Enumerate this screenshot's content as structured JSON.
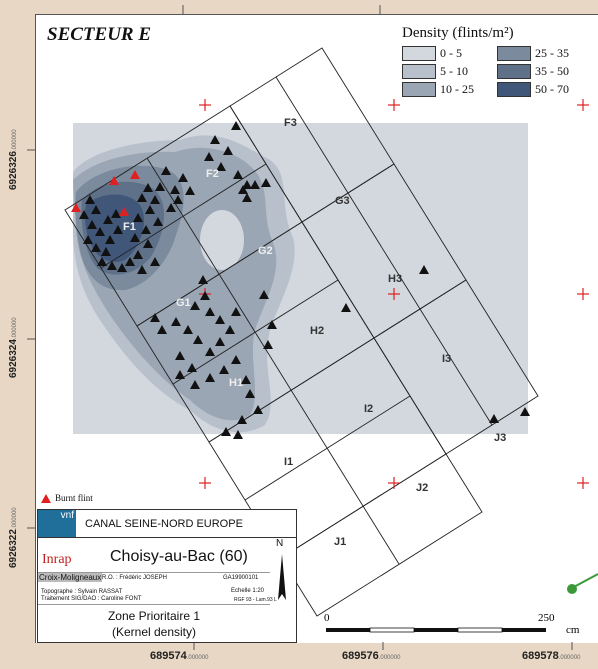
{
  "map": {
    "sector_title": "SECTEUR E",
    "legend": {
      "title": "Density (flints/m²)",
      "classes": [
        {
          "label": "0 - 5",
          "color": "#d3d8df"
        },
        {
          "label": "25 - 35",
          "color": "#7b8a9c"
        },
        {
          "label": "5 - 10",
          "color": "#b8c0cb"
        },
        {
          "label": "35 - 50",
          "color": "#5f7189"
        },
        {
          "label": "10 - 25",
          "color": "#9ba6b5"
        },
        {
          "label": "50 - 70",
          "color": "#40577a"
        }
      ]
    },
    "grid_labels": [
      "F3",
      "F2",
      "F1",
      "G3",
      "G2",
      "G1",
      "H3",
      "H2",
      "H1",
      "I3",
      "I2",
      "I1",
      "J3",
      "J2",
      "J1"
    ],
    "burnt_flint_label": "Burnt flint",
    "y_coords": [
      {
        "value": "6926326",
        "suffix": ".000000"
      },
      {
        "value": "6926324",
        "suffix": ".000000"
      },
      {
        "value": "6926322",
        "suffix": ".000000"
      }
    ],
    "x_coords": [
      {
        "value": "689574",
        "suffix": ".000000"
      },
      {
        "value": "689576",
        "suffix": ".000000"
      },
      {
        "value": "689578",
        "suffix": ".000000"
      }
    ],
    "scale": {
      "start": "0",
      "end": "250",
      "unit": "cm"
    },
    "north": "N"
  },
  "cartouche": {
    "logo_vnf": "vnf",
    "project": "CANAL SEINE-NORD EUROPE",
    "logo_inrap": "Inrap",
    "site": "Choisy-au-Bac (60)",
    "locality": "Croix-Moligneaux",
    "ro": "R.O. : Frédéric JOSEPH",
    "code": "GA19900101",
    "topo": "Topographe : Sylvain RASSAT",
    "scale": "Echelle 1:20",
    "sig": "Traitement SIG/DAO : Caroline FONT",
    "ref": "RGF 93 - Lam.93 L",
    "zone": "Zone Prioritaire 1",
    "method": "(Kernel density)"
  },
  "colors": {
    "background_tan": "#e7d7c4",
    "density_low": "#d3d8df",
    "density_high": "#40577a",
    "burnt_flint": "#e02020",
    "flint": "#111111",
    "grid_cross": "#e02020"
  }
}
